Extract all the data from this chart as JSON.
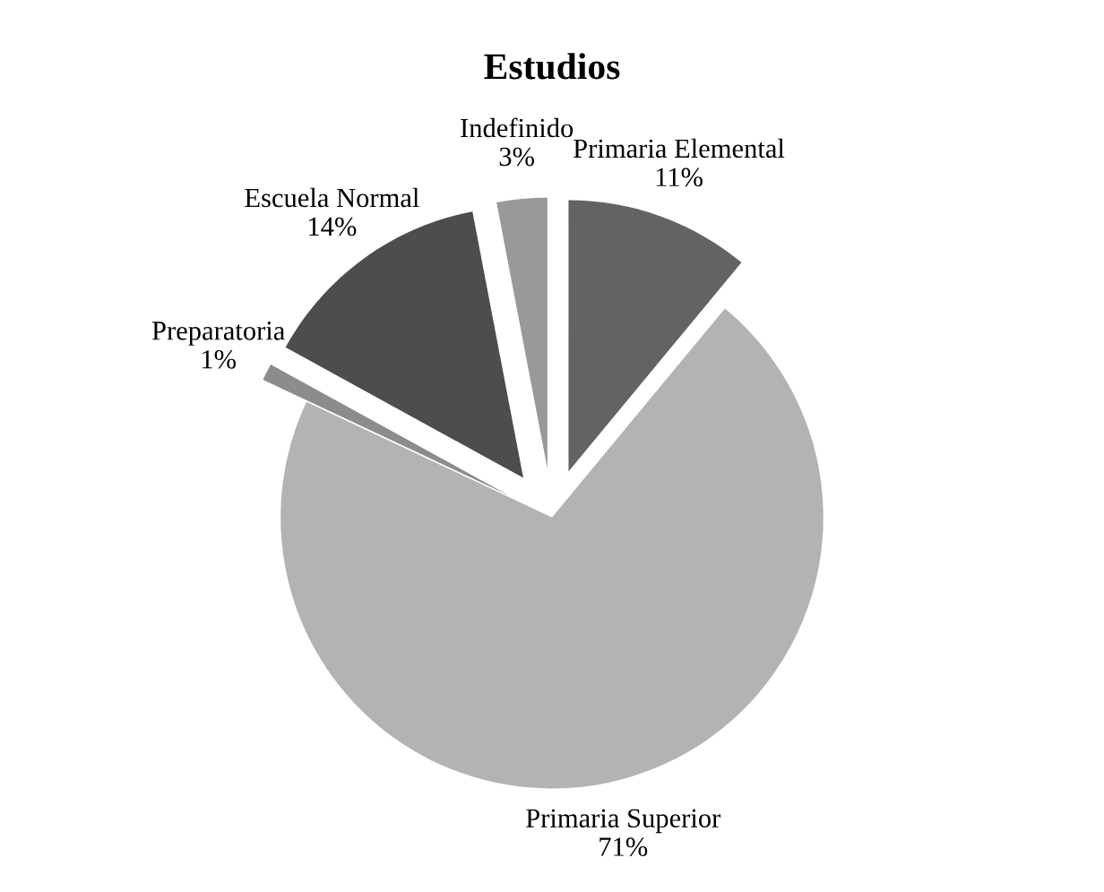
{
  "chart_data": {
    "type": "pie",
    "title": "Estudios",
    "categories": [
      "Primaria Elemental",
      "Primaria Superior",
      "Preparatoria",
      "Escuela Normal",
      "Indefinido"
    ],
    "values": [
      11,
      71,
      1,
      14,
      3
    ],
    "value_labels": [
      "11%",
      "71%",
      "1%",
      "14%",
      "3%"
    ],
    "colors": [
      "#636363",
      "#b3b3b3",
      "#8c8c8c",
      "#4d4d4d",
      "#999999"
    ],
    "legend": false
  }
}
